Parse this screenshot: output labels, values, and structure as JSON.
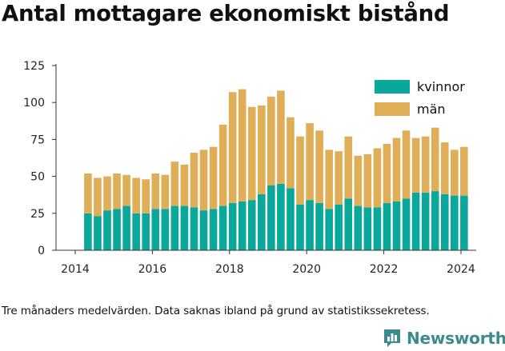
{
  "title": "Antal mottagare ekonomiskt bistånd",
  "footnote": "Tre månaders medelvärden. Data saknas ibland på grund av statistikssekretess.",
  "brand": {
    "name": "Newsworthy",
    "icon": "newsworthy-logo-icon",
    "color": "#3c8a8c"
  },
  "colors": {
    "kvinnor": "#0aa89a",
    "man": "#dfae57",
    "axis": "#333333"
  },
  "chart_data": {
    "type": "bar",
    "stacked": true,
    "grid": false,
    "legend_position": "top-right",
    "ylim": [
      0,
      125
    ],
    "yticks": [
      "0",
      "25",
      "50",
      "75",
      "100",
      "125"
    ],
    "xticks": [
      "2014",
      "2016",
      "2018",
      "2020",
      "2022",
      "2024"
    ],
    "xlim": [
      2014,
      2024.6
    ],
    "x": [
      2014.33,
      2014.58,
      2014.83,
      2015.08,
      2015.33,
      2015.58,
      2015.83,
      2016.08,
      2016.33,
      2016.58,
      2016.83,
      2017.08,
      2017.33,
      2017.58,
      2017.83,
      2018.08,
      2018.33,
      2018.58,
      2018.83,
      2019.08,
      2019.33,
      2019.58,
      2019.83,
      2020.08,
      2020.33,
      2020.58,
      2020.83,
      2021.08,
      2021.33,
      2021.58,
      2021.83,
      2022.08,
      2022.33,
      2022.58,
      2022.83,
      2023.08,
      2023.33,
      2023.58,
      2023.83,
      2024.08
    ],
    "series": [
      {
        "name": "kvinnor",
        "values": [
          25,
          23,
          27,
          28,
          30,
          25,
          25,
          28,
          28,
          30,
          30,
          29,
          27,
          28,
          30,
          32,
          33,
          34,
          38,
          44,
          45,
          42,
          31,
          34,
          32,
          28,
          31,
          35,
          30,
          29,
          29,
          32,
          33,
          35,
          39,
          39,
          40,
          38,
          37,
          37
        ]
      },
      {
        "name": "män",
        "values": [
          27,
          26,
          23,
          24,
          21,
          24,
          23,
          24,
          23,
          30,
          28,
          37,
          41,
          42,
          55,
          75,
          76,
          63,
          60,
          60,
          63,
          48,
          46,
          52,
          49,
          40,
          36,
          42,
          34,
          36,
          40,
          40,
          43,
          46,
          37,
          38,
          43,
          35,
          31,
          33
        ]
      }
    ]
  }
}
